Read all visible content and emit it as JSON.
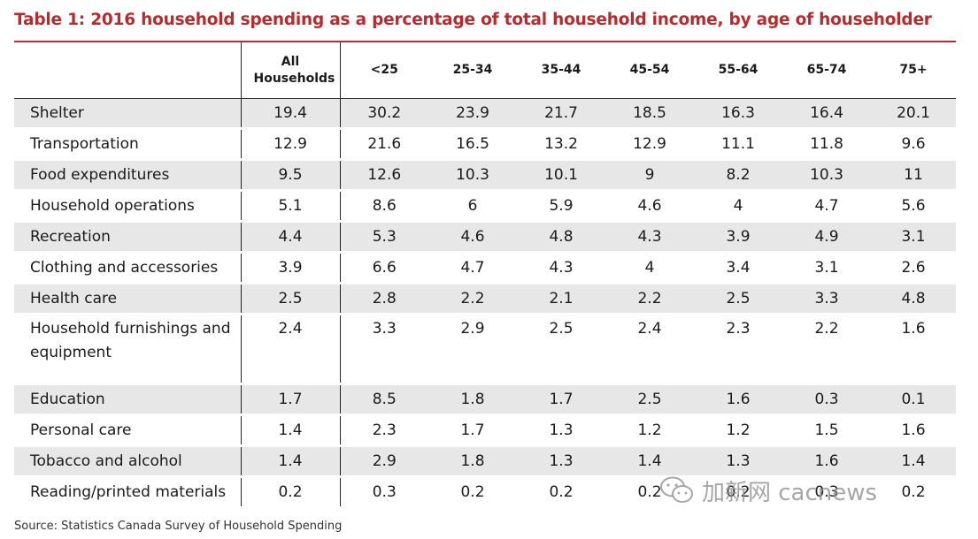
{
  "chart_data": {
    "type": "table",
    "title": "Table 1: 2016 household spending as a percentage of total household income, by age of householder",
    "columns": [
      "",
      "All Households",
      "<25",
      "25-34",
      "35-44",
      "45-54",
      "55-64",
      "65-74",
      "75+"
    ],
    "rows": [
      {
        "category": "Shelter",
        "values": [
          "19.4",
          "30.2",
          "23.9",
          "21.7",
          "18.5",
          "16.3",
          "16.4",
          "20.1"
        ]
      },
      {
        "category": "Transportation",
        "values": [
          "12.9",
          "21.6",
          "16.5",
          "13.2",
          "12.9",
          "11.1",
          "11.8",
          "9.6"
        ]
      },
      {
        "category": "Food expenditures",
        "values": [
          "9.5",
          "12.6",
          "10.3",
          "10.1",
          "9",
          "8.2",
          "10.3",
          "11"
        ]
      },
      {
        "category": "Household operations",
        "values": [
          "5.1",
          "8.6",
          "6",
          "5.9",
          "4.6",
          "4",
          "4.7",
          "5.6"
        ]
      },
      {
        "category": "Recreation",
        "values": [
          "4.4",
          "5.3",
          "4.6",
          "4.8",
          "4.3",
          "3.9",
          "4.9",
          "3.1"
        ]
      },
      {
        "category": "Clothing and accessories",
        "values": [
          "3.9",
          "6.6",
          "4.7",
          "4.3",
          "4",
          "3.4",
          "3.1",
          "2.6"
        ]
      },
      {
        "category": "Health care",
        "values": [
          "2.5",
          "2.8",
          "2.2",
          "2.1",
          "2.2",
          "2.5",
          "3.3",
          "4.8"
        ]
      },
      {
        "category": "Household furnishings and equipment",
        "values": [
          "2.4",
          "3.3",
          "2.9",
          "2.5",
          "2.4",
          "2.3",
          "2.2",
          "1.6"
        ]
      },
      {
        "category": "Education",
        "values": [
          "1.7",
          "8.5",
          "1.8",
          "1.7",
          "2.5",
          "1.6",
          "0.3",
          "0.1"
        ]
      },
      {
        "category": "Personal care",
        "values": [
          "1.4",
          "2.3",
          "1.7",
          "1.3",
          "1.2",
          "1.2",
          "1.5",
          "1.6"
        ]
      },
      {
        "category": "Tobacco and alcohol",
        "values": [
          "1.4",
          "2.9",
          "1.8",
          "1.3",
          "1.4",
          "1.3",
          "1.6",
          "1.4"
        ]
      },
      {
        "category": "Reading/printed materials",
        "values": [
          "0.2",
          "0.3",
          "0.2",
          "0.2",
          "0.2",
          "0.2",
          "0.3",
          "0.2"
        ]
      }
    ],
    "source": "Source: Statistics Canada Survey of Household Spending"
  },
  "watermark": {
    "text": "加新网 cacnews"
  },
  "colors": {
    "accent": "#b52b2e",
    "shade": "#e7e7e8"
  }
}
